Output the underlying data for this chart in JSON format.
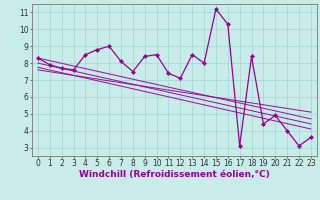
{
  "background_color": "#c8ecea",
  "grid_color": "#a8d8d4",
  "line_color": "#990099",
  "marker_color": "#990099",
  "xlabel": "Windchill (Refroidissement éolien,°C)",
  "xlabel_fontsize": 6.5,
  "tick_fontsize": 5.5,
  "xlim": [
    -0.5,
    23.5
  ],
  "ylim": [
    2.5,
    11.5
  ],
  "yticks": [
    3,
    4,
    5,
    6,
    7,
    8,
    9,
    10,
    11
  ],
  "xticks": [
    0,
    1,
    2,
    3,
    4,
    5,
    6,
    7,
    8,
    9,
    10,
    11,
    12,
    13,
    14,
    15,
    16,
    17,
    18,
    19,
    20,
    21,
    22,
    23
  ],
  "main_line_x": [
    0,
    1,
    2,
    3,
    4,
    5,
    6,
    7,
    8,
    9,
    10,
    11,
    12,
    13,
    14,
    15,
    16,
    17,
    18,
    19,
    20,
    21,
    22,
    23
  ],
  "main_line_y": [
    8.3,
    7.9,
    7.7,
    7.6,
    8.5,
    8.8,
    9.0,
    8.1,
    7.5,
    8.4,
    8.5,
    7.4,
    7.1,
    8.5,
    8.0,
    11.2,
    10.3,
    3.1,
    8.4,
    4.4,
    4.9,
    4.0,
    3.1,
    3.6
  ],
  "reg_lines": [
    {
      "x": [
        0,
        23
      ],
      "y": [
        8.3,
        4.7
      ]
    },
    {
      "x": [
        0,
        23
      ],
      "y": [
        8.0,
        4.4
      ]
    },
    {
      "x": [
        0,
        23
      ],
      "y": [
        7.75,
        4.1
      ]
    },
    {
      "x": [
        0,
        23
      ],
      "y": [
        7.6,
        5.1
      ]
    }
  ],
  "spine_color": "#777777",
  "tick_color": "#333333"
}
